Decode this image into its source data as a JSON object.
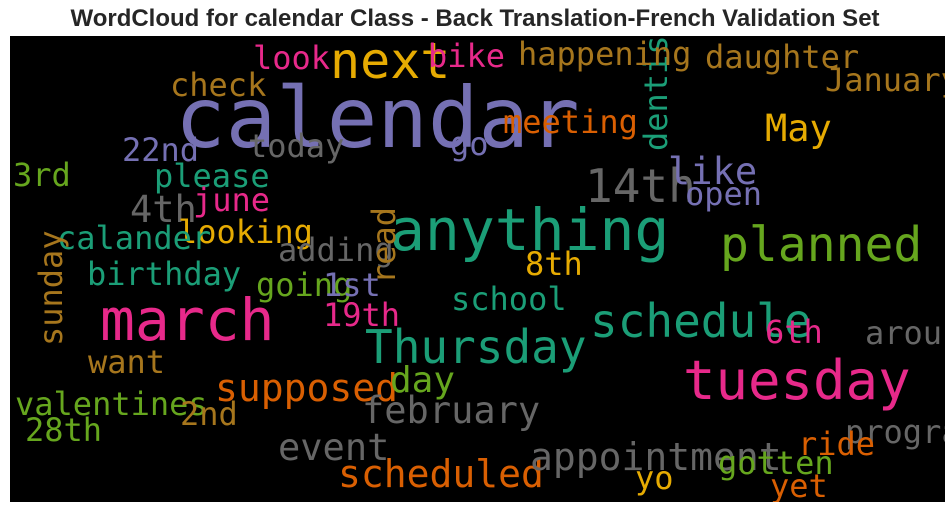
{
  "chart_data": {
    "type": "wordcloud",
    "title": "WordCloud for calendar Class - Back Translation-French Validation Set",
    "background": "#000000",
    "words": [
      {
        "text": "calendar",
        "weight": 1.0,
        "color": "#7570b3"
      },
      {
        "text": "anything",
        "weight": 0.66,
        "color": "#1b9e77"
      },
      {
        "text": "march",
        "weight": 0.66,
        "color": "#e7298a"
      },
      {
        "text": "tuesday",
        "weight": 0.6,
        "color": "#e7298a"
      },
      {
        "text": "next",
        "weight": 0.55,
        "color": "#e6ab02"
      },
      {
        "text": "planned",
        "weight": 0.52,
        "color": "#66a61e"
      },
      {
        "text": "schedule",
        "weight": 0.49,
        "color": "#1b9e77"
      },
      {
        "text": "Thursday",
        "weight": 0.49,
        "color": "#1b9e77"
      },
      {
        "text": "14th",
        "weight": 0.49,
        "color": "#666666"
      },
      {
        "text": "supposed",
        "weight": 0.37,
        "color": "#d95f02"
      },
      {
        "text": "scheduled",
        "weight": 0.37,
        "color": "#d95f02"
      },
      {
        "text": "appointment",
        "weight": 0.37,
        "color": "#666666"
      },
      {
        "text": "febru​ary",
        "weight": 0.35,
        "color": "#666666"
      },
      {
        "text": "event",
        "weight": 0.35,
        "color": "#666666"
      },
      {
        "text": "May",
        "weight": 0.35,
        "color": "#e6ab02"
      },
      {
        "text": "like",
        "weight": 0.35,
        "color": "#7570b3"
      },
      {
        "text": "4th",
        "weight": 0.35,
        "color": "#666666"
      },
      {
        "text": "day",
        "weight": 0.33,
        "color": "#66a61e"
      },
      {
        "text": "meeting",
        "weight": 0.27,
        "color": "#d95f02"
      },
      {
        "text": "dentist",
        "weight": 0.27,
        "color": "#1b9e77"
      },
      {
        "text": "happening",
        "weight": 0.27,
        "color": "#a6761d"
      },
      {
        "text": "daughter",
        "weight": 0.27,
        "color": "#a6761d"
      },
      {
        "text": "January",
        "weight": 0.27,
        "color": "#a6761d"
      },
      {
        "text": "look",
        "weight": 0.27,
        "color": "#e7298a"
      },
      {
        "text": "bike",
        "weight": 0.27,
        "color": "#e7298a"
      },
      {
        "text": "check",
        "weight": 0.27,
        "color": "#a6761d"
      },
      {
        "text": "today",
        "weight": 0.27,
        "color": "#666666"
      },
      {
        "text": "go",
        "weight": 0.27,
        "color": "#7570b3"
      },
      {
        "text": "22nd",
        "weight": 0.27,
        "color": "#7570b3"
      },
      {
        "text": "please",
        "weight": 0.27,
        "color": "#1b9e77"
      },
      {
        "text": "june",
        "weight": 0.27,
        "color": "#e7298a"
      },
      {
        "text": "3rd",
        "weight": 0.27,
        "color": "#66a61e"
      },
      {
        "text": "open",
        "weight": 0.27,
        "color": "#7570b3"
      },
      {
        "text": "looking",
        "weight": 0.27,
        "color": "#e6ab02"
      },
      {
        "text": "calander",
        "weight": 0.27,
        "color": "#1b9e77"
      },
      {
        "text": "adding",
        "weight": 0.27,
        "color": "#666666"
      },
      {
        "text": "read",
        "weight": 0.27,
        "color": "#a6761d"
      },
      {
        "text": "8th",
        "weight": 0.27,
        "color": "#e6ab02"
      },
      {
        "text": "birthday",
        "weight": 0.27,
        "color": "#1b9e77"
      },
      {
        "text": "going",
        "weight": 0.27,
        "color": "#66a61e"
      },
      {
        "text": "1st",
        "weight": 0.27,
        "color": "#7570b3"
      },
      {
        "text": "school",
        "weight": 0.27,
        "color": "#1b9e77"
      },
      {
        "text": "sunday",
        "weight": 0.27,
        "color": "#a6761d"
      },
      {
        "text": "19th",
        "weight": 0.27,
        "color": "#e7298a"
      },
      {
        "text": "6th",
        "weight": 0.27,
        "color": "#e7298a"
      },
      {
        "text": "around",
        "weight": 0.27,
        "color": "#666666"
      },
      {
        "text": "want",
        "weight": 0.27,
        "color": "#a6761d"
      },
      {
        "text": "valentines",
        "weight": 0.27,
        "color": "#66a61e"
      },
      {
        "text": "2nd",
        "weight": 0.27,
        "color": "#a6761d"
      },
      {
        "text": "28th",
        "weight": 0.27,
        "color": "#66a61e"
      },
      {
        "text": "program",
        "weight": 0.27,
        "color": "#666666"
      },
      {
        "text": "ride",
        "weight": 0.27,
        "color": "#d95f02"
      },
      {
        "text": "gotten",
        "weight": 0.27,
        "color": "#66a61e"
      },
      {
        "text": "yo",
        "weight": 0.27,
        "color": "#e6ab02"
      },
      {
        "text": "yet",
        "weight": 0.27,
        "color": "#d95f02"
      }
    ]
  }
}
